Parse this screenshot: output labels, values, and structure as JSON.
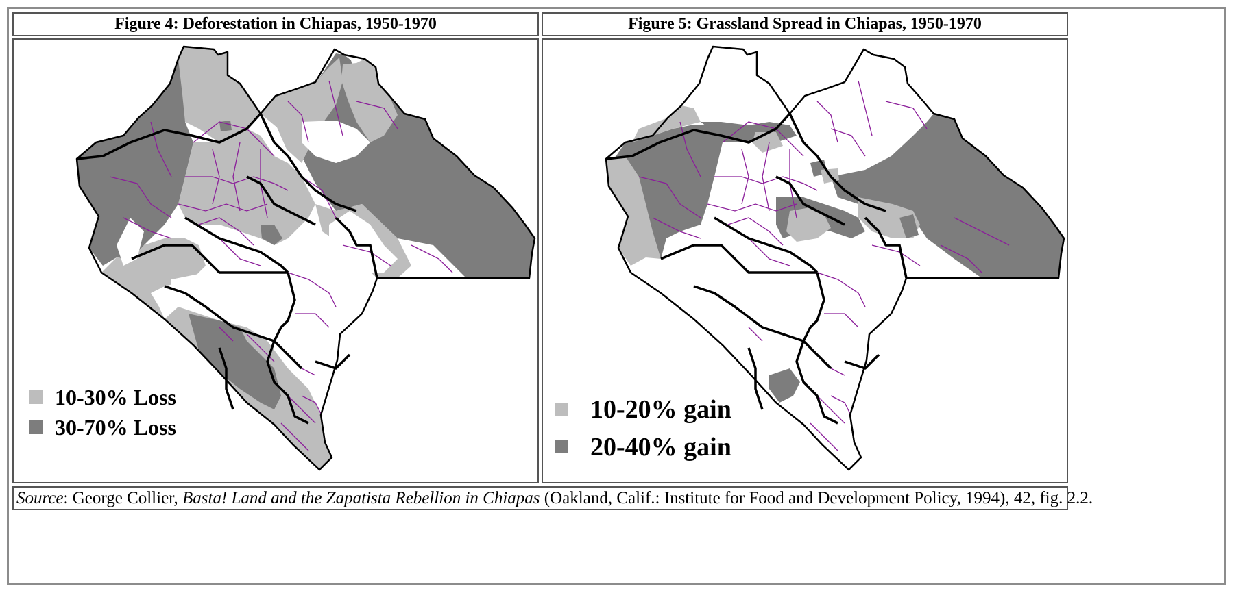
{
  "colors": {
    "light_gray": "#bdbdbd",
    "dark_gray": "#7d7d7d",
    "municipal_border": "#8b1e9a",
    "region_border": "#000000",
    "frame_border": "#8c8c8c"
  },
  "figure4": {
    "title": "Figure 4: Deforestation in Chiapas, 1950-1970",
    "legend": [
      {
        "label": "10-30% Loss",
        "color": "#bdbdbd"
      },
      {
        "label": "30-70% Loss",
        "color": "#7d7d7d"
      }
    ]
  },
  "figure5": {
    "title": "Figure 5: Grassland Spread in Chiapas, 1950-1970",
    "legend": [
      {
        "label": "10-20% gain",
        "color": "#bdbdbd"
      },
      {
        "label": "20-40% gain",
        "color": "#7d7d7d"
      }
    ]
  },
  "source": {
    "label": "Source",
    "text_a": ": George Collier, ",
    "book_title": "Basta! Land and the Zapatista Rebellion in Chiapas",
    "text_b": " (Oakland, Calif.: Institute for Food and Development Policy, 1994), 42, fig. 2.2."
  }
}
